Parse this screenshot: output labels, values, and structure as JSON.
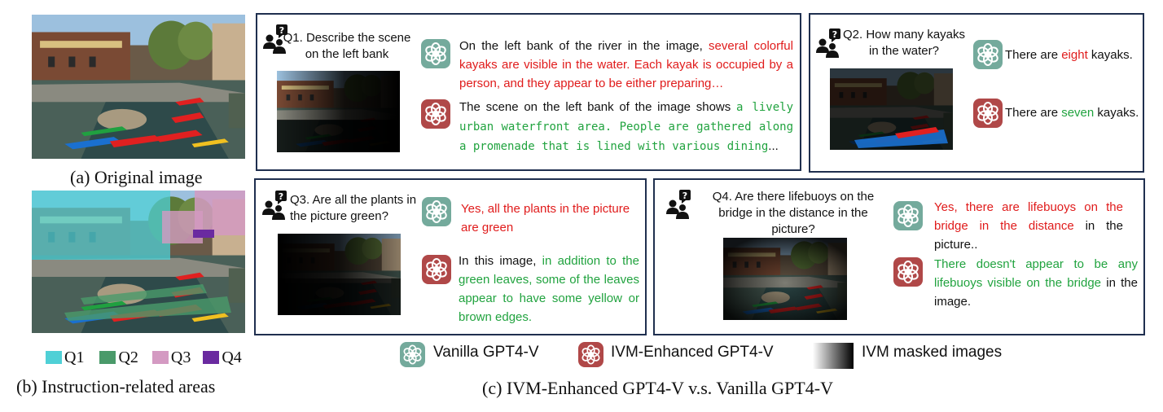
{
  "left": {
    "caption_a": "(a) Original image",
    "caption_b": "(b) Instruction-related areas",
    "legend": [
      {
        "label": "Q1",
        "color": "#4fd0d6"
      },
      {
        "label": "Q2",
        "color": "#4a9a6a"
      },
      {
        "label": "Q3",
        "color": "#d49ac2"
      },
      {
        "label": "Q4",
        "color": "#6a2aa0"
      }
    ]
  },
  "q1": {
    "question": "Q1. Describe the scene on the left bank",
    "vanilla_red": "On the left bank of the river in the image, several colorful kayaks are visible in the water. Each kayak is occupied by a person, and they appear to be either preparing…",
    "vanilla_prefix": "On the left bank of the river in the image, ",
    "vanilla_colored": "several colorful kayaks are visible in the water. Each kayak is occupied by a person, and they appear to be either preparing…",
    "ivm_prefix": "The scene on the left bank of the image shows ",
    "ivm_colored": "a lively urban waterfront area. People are gathered along a promenade that is lined with various dining",
    "ivm_suffix": "..."
  },
  "q2": {
    "question": "Q2. How many kayaks in the water?",
    "vanilla_prefix": "There are ",
    "vanilla_colored": "eight",
    "vanilla_suffix": " kayaks.",
    "ivm_prefix": "There are ",
    "ivm_colored": "seven",
    "ivm_suffix": " kayaks."
  },
  "q3": {
    "question": "Q3. Are all the plants in the picture green?",
    "vanilla_colored": "Yes, all the plants in the picture are green",
    "ivm_prefix": "In this image, ",
    "ivm_colored": "in addition to the green leaves, some of the leaves appear to have some yellow or brown edges."
  },
  "q4": {
    "question": "Q4. Are there lifebuoys on the bridge in the distance in the picture?",
    "vanilla_colored": "Yes, there are lifebuoys on the bridge in the distance",
    "vanilla_suffix": " in the picture..",
    "ivm_colored": "There doesn't appear to be any lifebuoys visible on the bridge",
    "ivm_suffix": " in the image."
  },
  "bottom_legend": {
    "vanilla": "Vanilla GPT4-V",
    "ivm": "IVM-Enhanced GPT4-V",
    "masked": "IVM masked images"
  },
  "caption_c": "(c) IVM-Enhanced GPT4-V v.s. Vanilla GPT4-V",
  "colors": {
    "wrong": "#e01b1b",
    "right": "#21a33f",
    "vanilla_icon": "#74aa9c",
    "ivm_icon": "#b04848",
    "border": "#1f2f4f"
  }
}
